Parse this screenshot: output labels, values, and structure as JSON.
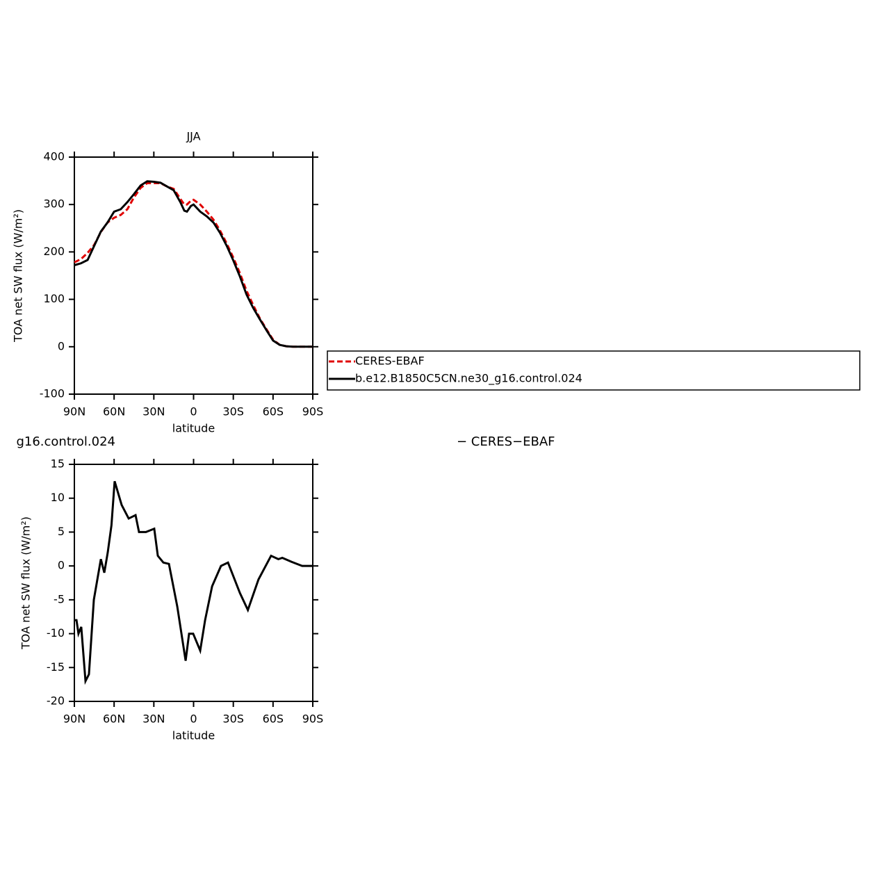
{
  "chart_data": [
    {
      "type": "line",
      "title": "JJA",
      "x_label": "latitude",
      "y_label": "TOA net SW flux (W/m²)",
      "x": [
        90,
        85,
        80,
        75,
        70,
        65,
        60,
        55,
        50,
        45,
        40,
        35,
        30,
        25,
        20,
        15,
        10,
        7,
        5,
        2,
        0,
        -5,
        -10,
        -15,
        -20,
        -25,
        -30,
        -35,
        -40,
        -45,
        -50,
        -55,
        -60,
        -65,
        -70,
        -75,
        -80,
        -85,
        -90
      ],
      "series": [
        {
          "name": "CERES-EBAF",
          "color": "#e00000",
          "dash": true,
          "values": [
            178,
            185,
            198,
            215,
            242,
            262,
            272,
            278,
            290,
            315,
            335,
            345,
            345,
            345,
            338,
            333,
            312,
            300,
            300,
            308,
            310,
            300,
            285,
            268,
            245,
            218,
            188,
            155,
            118,
            88,
            60,
            37,
            15,
            4,
            1,
            0,
            0,
            0,
            0
          ]
        },
        {
          "name": "b.e12.B1850C5CN.ne30_g16.control.024",
          "color": "#000000",
          "dash": false,
          "values": [
            172,
            176,
            183,
            213,
            243,
            262,
            285,
            290,
            305,
            322,
            340,
            349,
            348,
            346,
            338,
            330,
            305,
            287,
            285,
            297,
            300,
            285,
            275,
            262,
            240,
            213,
            182,
            148,
            110,
            82,
            58,
            35,
            13,
            4,
            1,
            0,
            0,
            0,
            0
          ]
        }
      ],
      "xlim": [
        90,
        -90
      ],
      "xticks": [
        {
          "value": 90,
          "label": "90N"
        },
        {
          "value": 60,
          "label": "60N"
        },
        {
          "value": 30,
          "label": "30N"
        },
        0,
        {
          "value": -30,
          "label": "30S"
        },
        {
          "value": -60,
          "label": "60S"
        },
        {
          "value": -90,
          "label": "90S"
        }
      ],
      "ylim": [
        -100,
        400
      ],
      "yticks": [
        -100,
        0,
        100,
        200,
        300,
        400
      ],
      "legend_position": "right"
    },
    {
      "type": "line",
      "title_left": "g16.control.024",
      "title_right": "− CERES−EBAF",
      "x_label": "latitude",
      "y_label": "TOA net SW flux (W/m²)",
      "x": [
        90,
        88.4,
        86.9,
        84.8,
        81.6,
        79,
        75.3,
        70,
        67.4,
        64.8,
        62,
        59.6,
        54.3,
        49,
        43.8,
        41.2,
        36,
        29.7,
        27,
        22.8,
        18.6,
        12.3,
        6,
        3.4,
        0.3,
        -5,
        -8.7,
        -14,
        -20.7,
        -26,
        -35,
        -41,
        -49,
        -58.5,
        -64,
        -67,
        -74,
        -82,
        -90
      ],
      "values": [
        -8,
        -8,
        -10,
        -9,
        -17,
        -16,
        -5,
        1,
        -1,
        2,
        6,
        12.5,
        9,
        7,
        7.5,
        5,
        5,
        5.5,
        1.5,
        0.5,
        0.3,
        -6,
        -14,
        -10,
        -10,
        -12.5,
        -8,
        -3,
        0,
        0.5,
        -4,
        -6.5,
        -2,
        1.5,
        1,
        1.2,
        0.6,
        0,
        0
      ],
      "color": "#000000",
      "xlim": [
        90,
        -90
      ],
      "xticks": [
        {
          "value": 90,
          "label": "90N"
        },
        {
          "value": 60,
          "label": "60N"
        },
        {
          "value": 30,
          "label": "30N"
        },
        0,
        {
          "value": -30,
          "label": "30S"
        },
        {
          "value": -60,
          "label": "60S"
        },
        {
          "value": -90,
          "label": "90S"
        }
      ],
      "ylim": [
        -20,
        15
      ],
      "yticks": [
        -20,
        -15,
        -10,
        -5,
        0,
        5,
        10,
        15
      ]
    }
  ]
}
